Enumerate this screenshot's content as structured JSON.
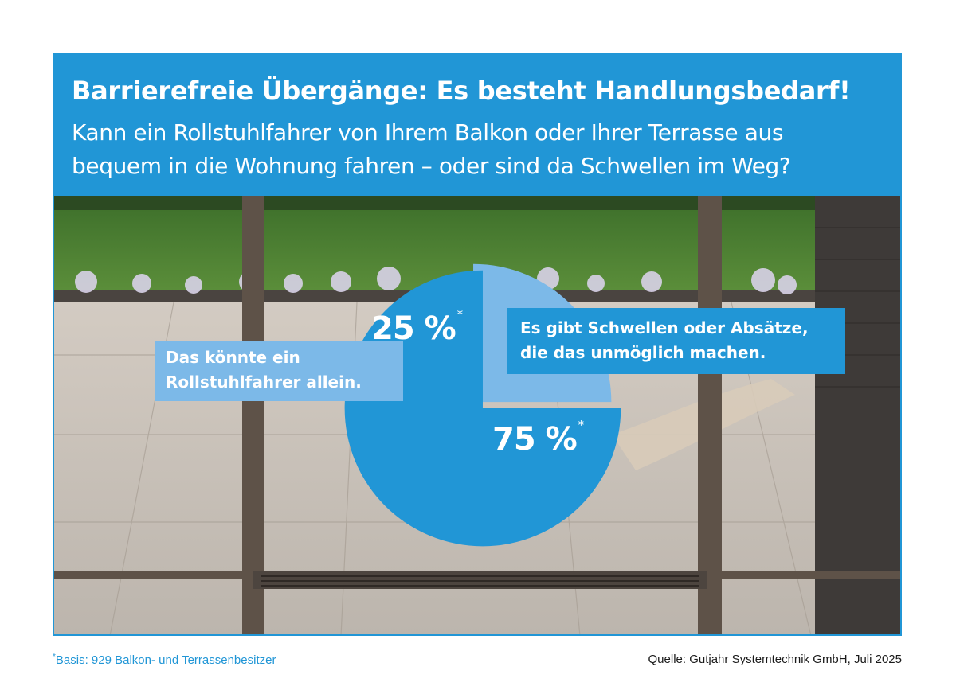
{
  "header": {
    "title": "Barrierefreie Übergänge: Es besteht Handlungsbedarf!",
    "subtitle": "Kann ein Rollstuhlfahrer von Ihrem Balkon oder Ihrer Terrasse aus bequem in die Wohnung fahren – oder sind da Schwellen im Weg?"
  },
  "chart_data": {
    "type": "pie",
    "slices": [
      {
        "label": "Das könnte ein Rollstuhlfahrer allein.",
        "value": 25,
        "value_text": "25 %",
        "marker": "*",
        "color": "#7cb9e8"
      },
      {
        "label": "Es gibt Schwellen oder Absätze, die das unmöglich machen.",
        "value": 75,
        "value_text": "75 %",
        "marker": "*",
        "color": "#2196d6"
      }
    ]
  },
  "footer": {
    "footnote_marker": "*",
    "footnote": "Basis: 929 Balkon- und Terrassenbesitzer",
    "source": "Quelle: Gutjahr Systemtechnik GmbH, Juli 2025"
  },
  "colors": {
    "brand": "#2196d6",
    "light": "#7cb9e8"
  }
}
